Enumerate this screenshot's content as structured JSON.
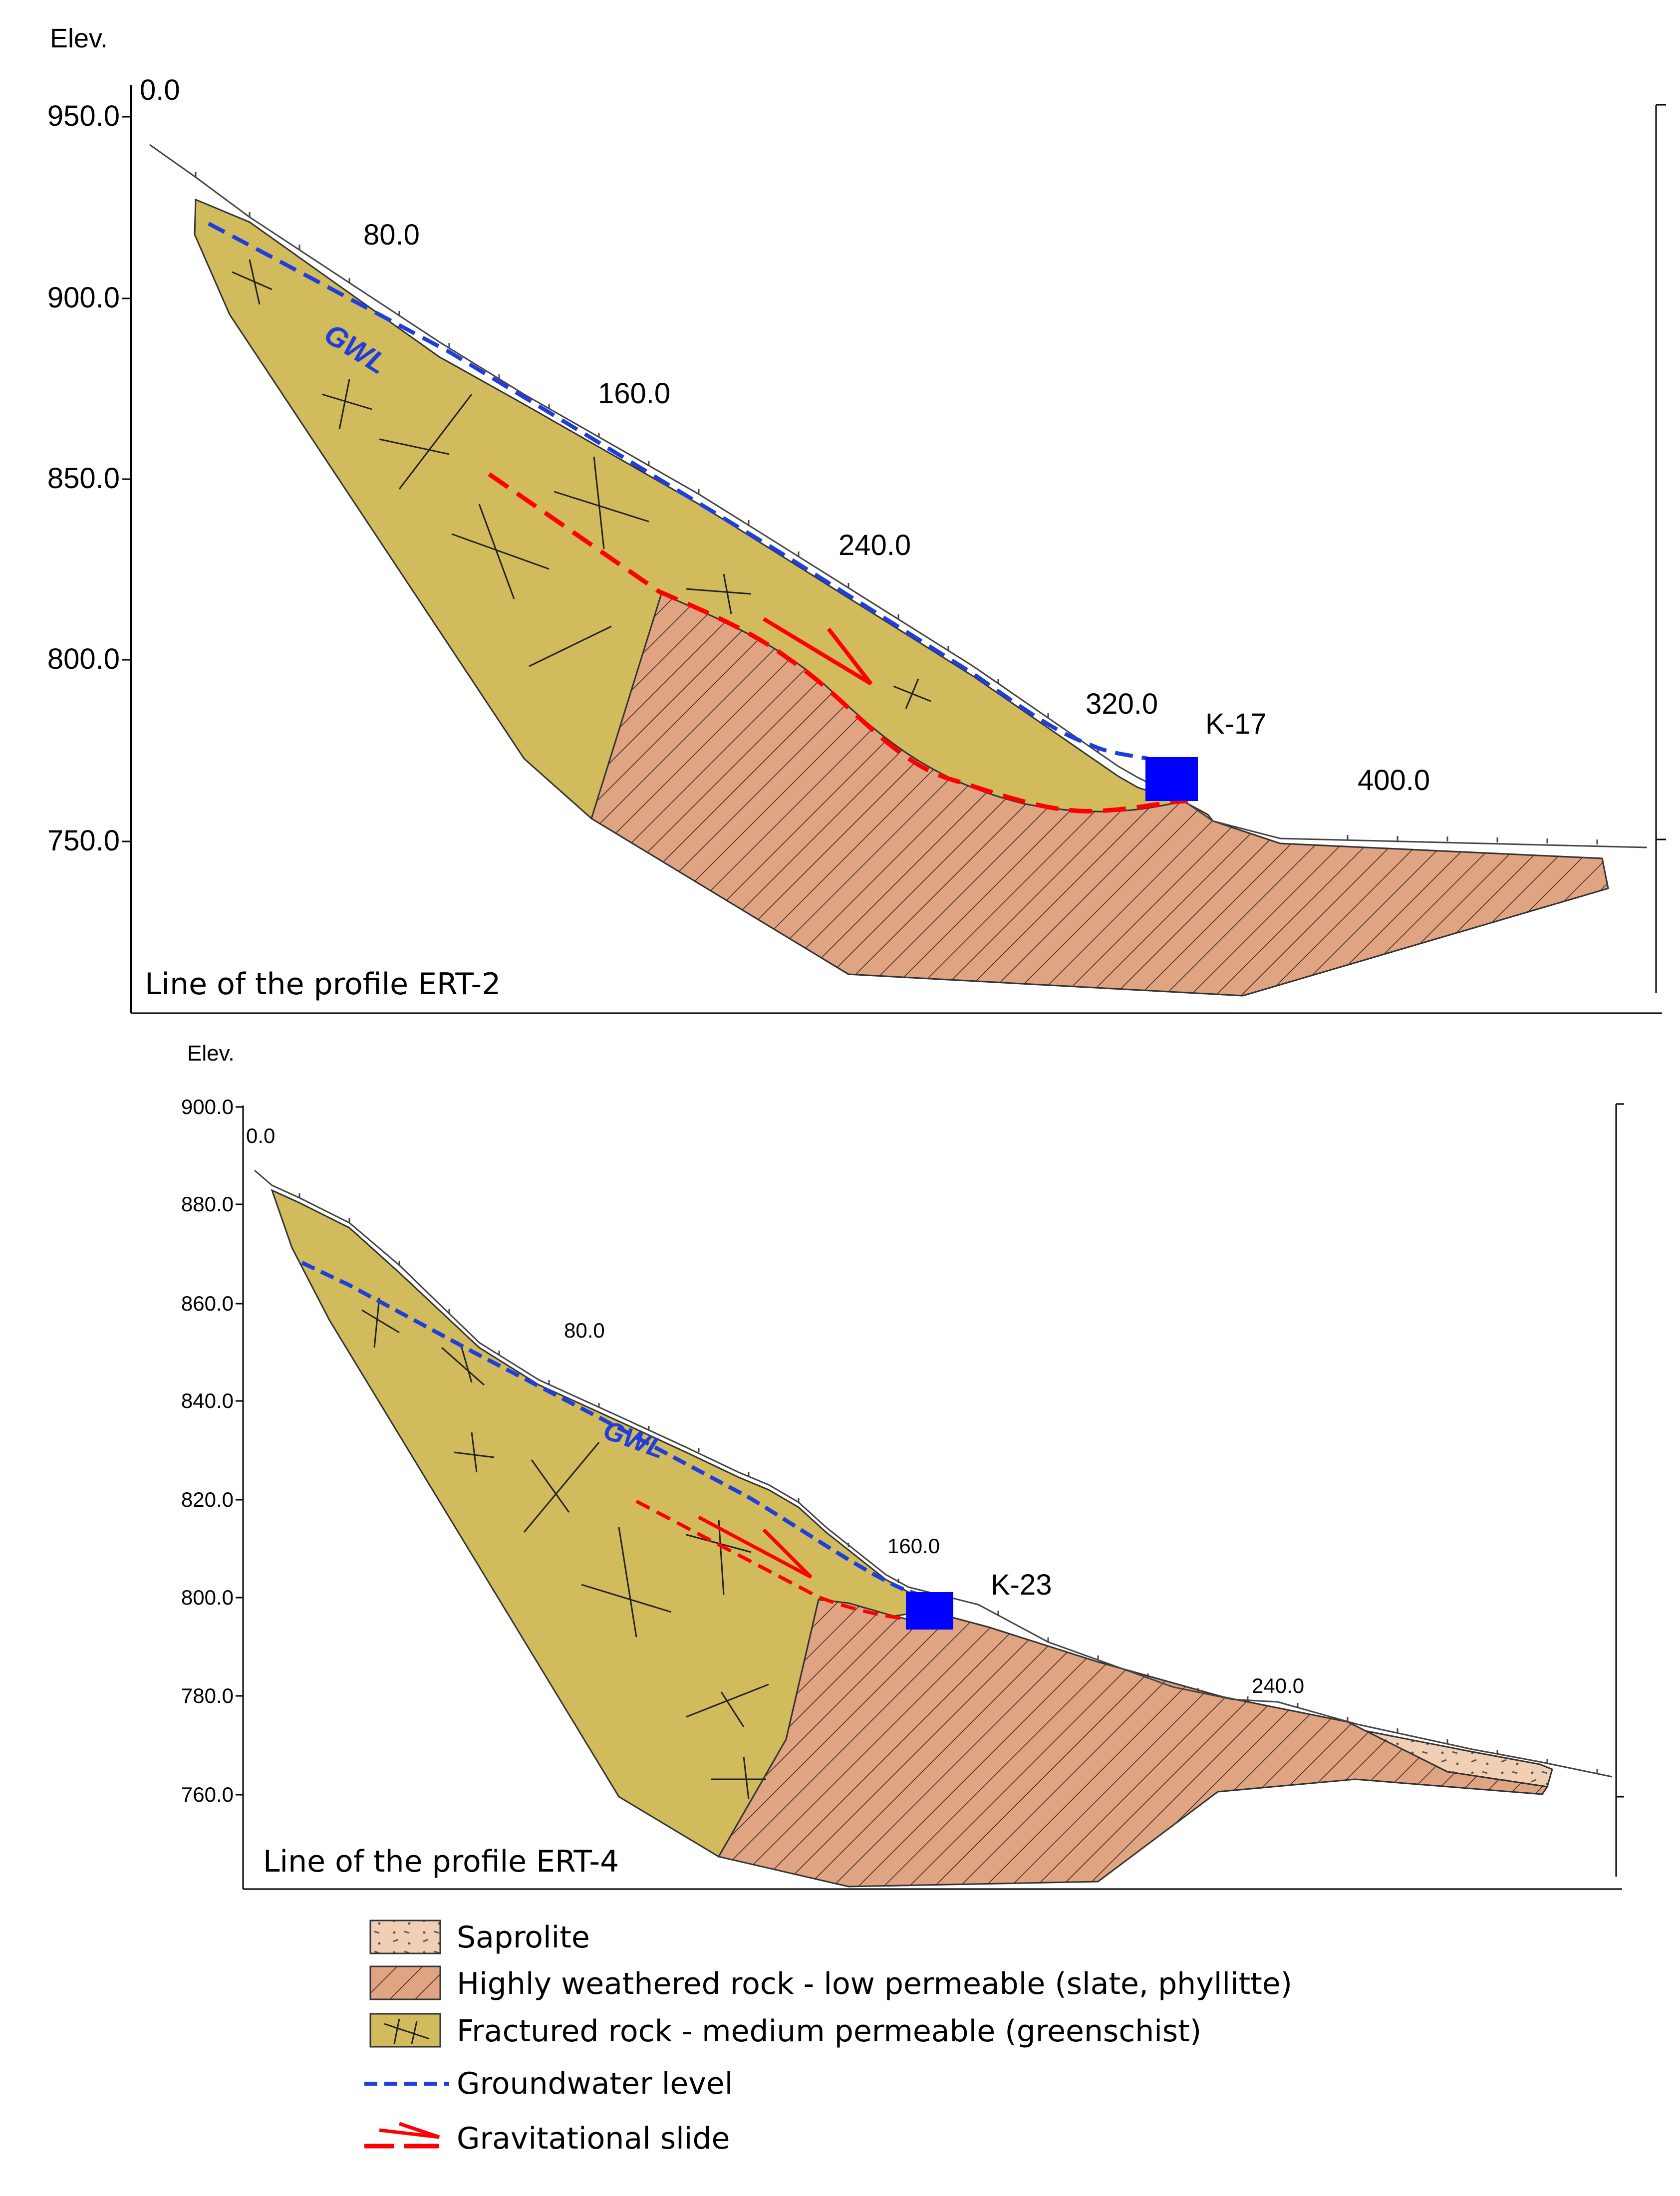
{
  "colors": {
    "fractured": "#d1bb5c",
    "weathered": "#e0a483",
    "saprolite": "#f1cfb5",
    "groundwater": "#1f3fdc",
    "slide": "#ff0000",
    "borehole": "#0000ff",
    "outline": "#333333"
  },
  "profile1": {
    "elev_label": "Elev.",
    "y_ticks": [
      "950.0",
      "900.0",
      "850.0",
      "800.0",
      "750.0"
    ],
    "x_labels": [
      "0.0",
      "80.0",
      "160.0",
      "240.0",
      "320.0",
      "400.0"
    ],
    "gwl_label": "GWL",
    "borehole_label": "K-17",
    "caption": "Line of the profile ERT-2"
  },
  "profile2": {
    "elev_label": "Elev.",
    "y_ticks": [
      "900.0",
      "880.0",
      "860.0",
      "840.0",
      "820.0",
      "800.0",
      "780.0",
      "760.0"
    ],
    "x_labels": [
      "0.0",
      "80.0",
      "160.0",
      "240.0"
    ],
    "gwl_label": "GWL",
    "borehole_label": "K-23",
    "caption": "Line of the profile ERT-4"
  },
  "legend": {
    "saprolite": "Saprolite",
    "weathered": "Highly weathered rock - low permeable (slate, phyllitte)",
    "fractured": "Fractured rock - medium permeable (greenschist)",
    "groundwater": "Groundwater level",
    "slide": "Gravitational slide"
  }
}
